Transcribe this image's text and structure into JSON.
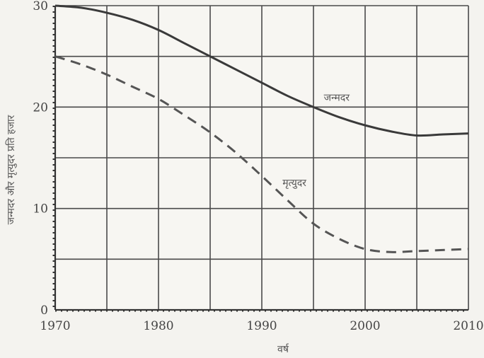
{
  "chart_data": {
    "type": "line",
    "xlabel": "वर्ष",
    "ylabel": "जन्मदर और मृत्युदर प्रति हजार",
    "xlim": [
      1970,
      2010
    ],
    "ylim": [
      0,
      30
    ],
    "xticks": [
      1970,
      1980,
      1990,
      2000,
      2010
    ],
    "yticks": [
      0,
      10,
      20,
      30
    ],
    "grid": true,
    "series": [
      {
        "name": "जन्मदर",
        "style": "solid",
        "color": "#3a3a3a",
        "label_at": [
          1996,
          20.6
        ],
        "x": [
          1970,
          1972.5,
          1975,
          1977.5,
          1980,
          1982.5,
          1985,
          1987.5,
          1990,
          1992.5,
          1995,
          1997.5,
          2000,
          2002.5,
          2005,
          2007.5,
          2010
        ],
        "values": [
          30.0,
          29.8,
          29.3,
          28.6,
          27.6,
          26.3,
          25.0,
          23.7,
          22.4,
          21.1,
          20.0,
          19.0,
          18.2,
          17.6,
          17.2,
          17.3,
          17.4
        ]
      },
      {
        "name": "मृत्युदर",
        "style": "dashed",
        "color": "#555555",
        "label_at": [
          1992,
          12.2
        ],
        "x": [
          1970,
          1972.5,
          1975,
          1977.5,
          1980,
          1982.5,
          1985,
          1987.5,
          1990,
          1992.5,
          1995,
          1997.5,
          2000,
          2002.5,
          2005,
          2007.5,
          2010
        ],
        "values": [
          25.0,
          24.2,
          23.2,
          22.0,
          20.8,
          19.2,
          17.5,
          15.5,
          13.2,
          10.8,
          8.5,
          7.0,
          6.0,
          5.7,
          5.8,
          5.9,
          6.0
        ]
      }
    ]
  }
}
